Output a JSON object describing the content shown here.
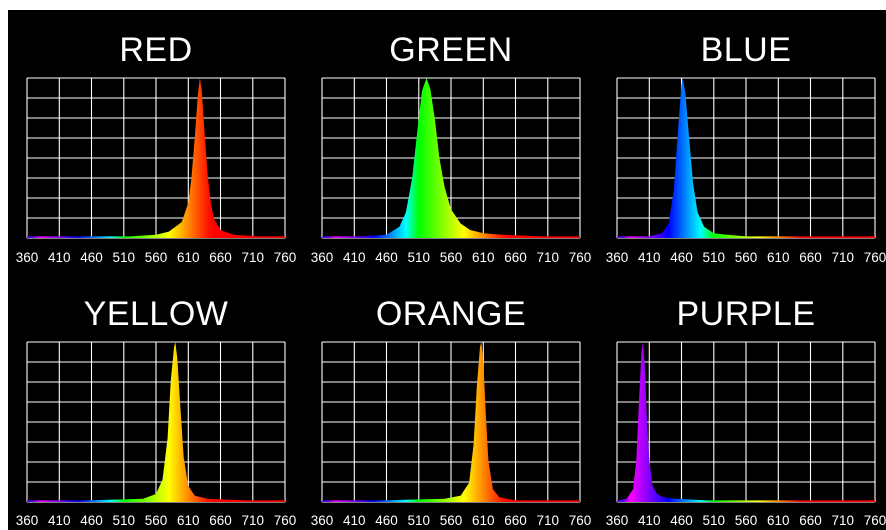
{
  "chart_data": [
    {
      "type": "area",
      "title": "RED",
      "peak_nm": 628,
      "fwhm_nm": 20,
      "x_ticks": [
        "360",
        "410",
        "460",
        "510",
        "560",
        "610",
        "660",
        "710",
        "760"
      ],
      "xlim": [
        360,
        760
      ],
      "ylim": [
        0,
        1
      ],
      "grid": true,
      "x": [
        360,
        400,
        440,
        480,
        520,
        560,
        580,
        600,
        610,
        615,
        620,
        625,
        628,
        631,
        636,
        640,
        645,
        650,
        660,
        680,
        720,
        760
      ],
      "y": [
        0.01,
        0.01,
        0.01,
        0.01,
        0.01,
        0.02,
        0.04,
        0.1,
        0.22,
        0.38,
        0.62,
        0.9,
        1.0,
        0.92,
        0.62,
        0.4,
        0.22,
        0.12,
        0.05,
        0.02,
        0.01,
        0.01
      ]
    },
    {
      "type": "area",
      "title": "GREEN",
      "peak_nm": 522,
      "fwhm_nm": 35,
      "x_ticks": [
        "360",
        "410",
        "460",
        "510",
        "560",
        "610",
        "660",
        "710",
        "760"
      ],
      "xlim": [
        360,
        760
      ],
      "ylim": [
        0,
        1
      ],
      "grid": true,
      "x": [
        360,
        420,
        460,
        480,
        490,
        500,
        508,
        515,
        522,
        528,
        535,
        542,
        550,
        560,
        575,
        590,
        610,
        640,
        700,
        760
      ],
      "y": [
        0.01,
        0.01,
        0.02,
        0.07,
        0.16,
        0.38,
        0.68,
        0.92,
        1.0,
        0.93,
        0.74,
        0.5,
        0.32,
        0.18,
        0.09,
        0.05,
        0.03,
        0.02,
        0.01,
        0.01
      ]
    },
    {
      "type": "area",
      "title": "BLUE",
      "peak_nm": 462,
      "fwhm_nm": 22,
      "x_ticks": [
        "360",
        "410",
        "460",
        "510",
        "560",
        "610",
        "660",
        "710",
        "760"
      ],
      "xlim": [
        360,
        760
      ],
      "ylim": [
        0,
        1
      ],
      "grid": true,
      "x": [
        360,
        410,
        430,
        440,
        448,
        455,
        460,
        462,
        466,
        472,
        478,
        485,
        495,
        510,
        530,
        560,
        620,
        760
      ],
      "y": [
        0.01,
        0.01,
        0.03,
        0.09,
        0.3,
        0.7,
        0.96,
        1.0,
        0.9,
        0.62,
        0.34,
        0.16,
        0.07,
        0.03,
        0.02,
        0.01,
        0.01,
        0.01
      ]
    },
    {
      "type": "area",
      "title": "YELLOW",
      "peak_nm": 590,
      "fwhm_nm": 16,
      "x_ticks": [
        "360",
        "410",
        "460",
        "510",
        "560",
        "610",
        "660",
        "710",
        "760"
      ],
      "xlim": [
        360,
        760
      ],
      "ylim": [
        0,
        1
      ],
      "grid": true,
      "x": [
        360,
        450,
        540,
        560,
        570,
        578,
        583,
        588,
        590,
        593,
        598,
        603,
        610,
        620,
        640,
        700,
        760
      ],
      "y": [
        0.01,
        0.01,
        0.02,
        0.05,
        0.14,
        0.4,
        0.76,
        0.97,
        1.0,
        0.9,
        0.58,
        0.28,
        0.1,
        0.04,
        0.02,
        0.01,
        0.01
      ]
    },
    {
      "type": "area",
      "title": "ORANGE",
      "peak_nm": 607,
      "fwhm_nm": 14,
      "x_ticks": [
        "360",
        "410",
        "460",
        "510",
        "560",
        "610",
        "660",
        "710",
        "760"
      ],
      "xlim": [
        360,
        760
      ],
      "ylim": [
        0,
        1
      ],
      "grid": true,
      "x": [
        360,
        450,
        550,
        575,
        588,
        595,
        600,
        605,
        607,
        610,
        614,
        618,
        625,
        635,
        660,
        760
      ],
      "y": [
        0.01,
        0.01,
        0.02,
        0.04,
        0.12,
        0.36,
        0.72,
        0.97,
        1.0,
        0.88,
        0.55,
        0.26,
        0.08,
        0.03,
        0.01,
        0.01
      ]
    },
    {
      "type": "area",
      "title": "PURPLE",
      "peak_nm": 400,
      "fwhm_nm": 12,
      "x_ticks": [
        "360",
        "410",
        "460",
        "510",
        "560",
        "610",
        "660",
        "710",
        "760"
      ],
      "xlim": [
        360,
        760
      ],
      "ylim": [
        0,
        1
      ],
      "grid": true,
      "x": [
        360,
        375,
        385,
        390,
        394,
        398,
        400,
        403,
        406,
        410,
        415,
        422,
        432,
        450,
        500,
        600,
        760
      ],
      "y": [
        0.01,
        0.02,
        0.08,
        0.26,
        0.62,
        0.94,
        1.0,
        0.86,
        0.55,
        0.26,
        0.1,
        0.05,
        0.03,
        0.02,
        0.01,
        0.01,
        0.01
      ]
    }
  ]
}
